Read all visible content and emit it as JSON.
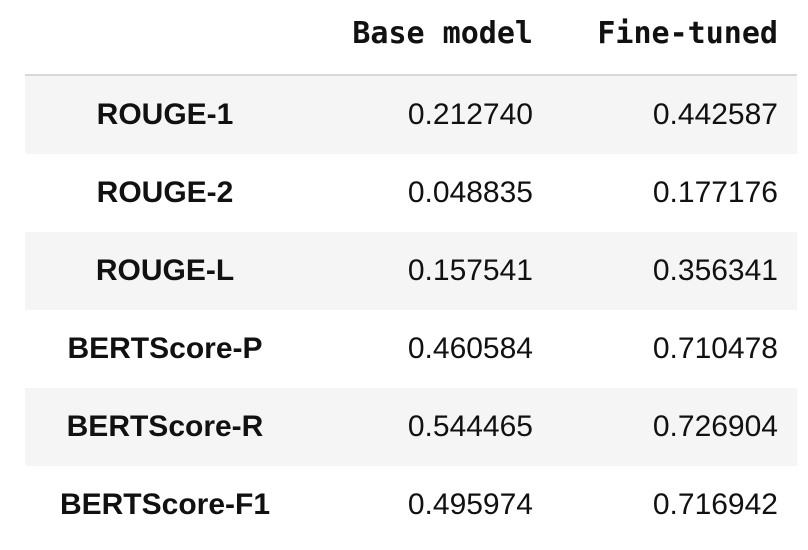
{
  "table": {
    "columns": [
      "Base model",
      "Fine-tuned"
    ],
    "rows": [
      {
        "index": "ROUGE-1",
        "values": [
          "0.212740",
          "0.442587"
        ]
      },
      {
        "index": "ROUGE-2",
        "values": [
          "0.048835",
          "0.177176"
        ]
      },
      {
        "index": "ROUGE-L",
        "values": [
          "0.157541",
          "0.356341"
        ]
      },
      {
        "index": "BERTScore-P",
        "values": [
          "0.460584",
          "0.710478"
        ]
      },
      {
        "index": "BERTScore-R",
        "values": [
          "0.544465",
          "0.726904"
        ]
      },
      {
        "index": "BERTScore-F1",
        "values": [
          "0.495974",
          "0.716942"
        ]
      }
    ]
  }
}
